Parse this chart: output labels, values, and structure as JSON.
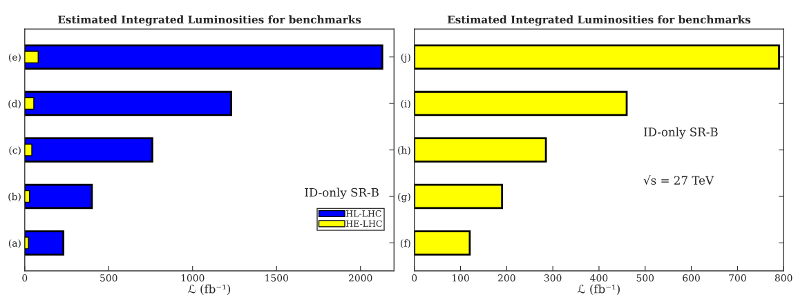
{
  "chart_data": [
    {
      "type": "bar",
      "orientation": "horizontal",
      "title": "Estimated Integrated Luminosities for benchmarks",
      "xlabel": "ℒ (fb⁻¹)",
      "categories": [
        "(e)",
        "(d)",
        "(c)",
        "(b)",
        "(a)"
      ],
      "series": [
        {
          "name": "HL-LHC",
          "color": "#0000ff",
          "values": [
            2130,
            1230,
            760,
            400,
            230
          ]
        },
        {
          "name": "HE-LHC",
          "color": "#ffff00",
          "values": [
            80,
            54,
            42,
            28,
            22
          ]
        }
      ],
      "xlim": [
        0,
        2200
      ],
      "xticks": [
        0,
        500,
        1000,
        1500,
        2000
      ],
      "legend": "bottom right",
      "annotations": [
        "ID-only SR-B"
      ]
    },
    {
      "type": "bar",
      "orientation": "horizontal",
      "title": "Estimated Integrated Luminosities for benchmarks",
      "xlabel": "ℒ (fb⁻¹)",
      "categories": [
        "(j)",
        "(i)",
        "(h)",
        "(g)",
        "(f)"
      ],
      "series": [
        {
          "color": "#ffff00",
          "values": [
            790,
            460,
            285,
            190,
            120
          ]
        }
      ],
      "xlim": [
        0,
        800
      ],
      "xticks": [
        0,
        100,
        200,
        300,
        400,
        500,
        600,
        700,
        800
      ],
      "annotations": [
        "ID-only SR-B",
        "√s = 27 TeV"
      ]
    }
  ]
}
